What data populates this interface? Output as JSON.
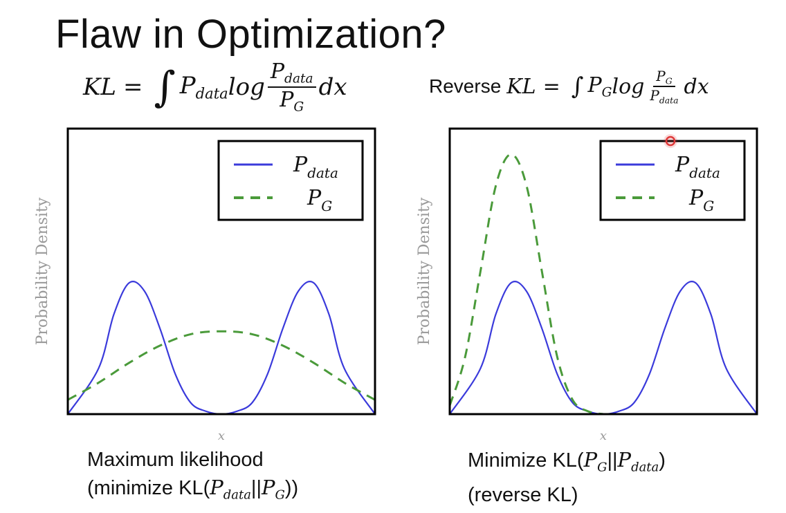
{
  "title": "Flaw in Optimization?",
  "formulas": {
    "left": {
      "lhs": "KL",
      "eq": "=",
      "integral": "∫",
      "p": "P",
      "sub": "data",
      "log": "log",
      "num_p": "P",
      "num_sub": "data",
      "den_p": "P",
      "den_sub": "G",
      "dx": "dx"
    },
    "right": {
      "prefix": "Reverse",
      "lhs": "KL",
      "eq": "=",
      "integral": "∫",
      "p": "P",
      "sub": "G",
      "log": "log",
      "num_p": "P",
      "num_sub": "G",
      "den_p": "P",
      "den_sub": "data",
      "dx": "dx"
    }
  },
  "captions": {
    "left": {
      "line1": "Maximum likelihood",
      "line2_a": "(minimize KL(",
      "p1": "P",
      "p1_sub": "data",
      "sep": "||",
      "p2": "P",
      "p2_sub": "G",
      "line2_b": "))"
    },
    "right": {
      "line1_a": "Minimize KL(",
      "p1": "P",
      "p1_sub": "G",
      "sep": "||",
      "p2": "P",
      "p2_sub": "data",
      "line1_b": ")",
      "line2": "(reverse KL)"
    }
  },
  "colors": {
    "p_data": "#3a3adb",
    "p_g": "#4a9a3a",
    "frame": "#000000",
    "axis_label": "#999999",
    "pointer": "#e03a3a"
  },
  "chart_data": [
    {
      "type": "line",
      "xlabel": "x",
      "ylabel": "Probability Density",
      "legend_placement": "top-right",
      "legend": [
        {
          "p": "P",
          "sub": "data",
          "style": "solid"
        },
        {
          "p": "P",
          "sub": "G",
          "style": "dashed"
        }
      ],
      "xlim": [
        0,
        1
      ],
      "ylim": [
        0,
        1
      ],
      "series": [
        {
          "style": "solid",
          "x": [
            0.0,
            0.1,
            0.15,
            0.2,
            0.25,
            0.3,
            0.35,
            0.4,
            0.45,
            0.5,
            0.55,
            0.6,
            0.65,
            0.7,
            0.75,
            0.8,
            0.85,
            0.9,
            1.0
          ],
          "y": [
            0.0,
            0.16,
            0.35,
            0.46,
            0.43,
            0.3,
            0.14,
            0.04,
            0.01,
            0.0,
            0.01,
            0.04,
            0.14,
            0.3,
            0.43,
            0.46,
            0.35,
            0.16,
            0.0
          ]
        },
        {
          "style": "dashed",
          "x": [
            0.0,
            0.1,
            0.2,
            0.3,
            0.4,
            0.5,
            0.6,
            0.7,
            0.8,
            0.9,
            1.0
          ],
          "y": [
            0.05,
            0.11,
            0.18,
            0.24,
            0.28,
            0.29,
            0.28,
            0.24,
            0.18,
            0.11,
            0.05
          ]
        }
      ]
    },
    {
      "type": "line",
      "xlabel": "x",
      "ylabel": "Probability Density",
      "legend_placement": "top-right",
      "legend": [
        {
          "p": "P",
          "sub": "data",
          "style": "solid"
        },
        {
          "p": "P",
          "sub": "G",
          "style": "dashed"
        }
      ],
      "xlim": [
        0,
        1
      ],
      "ylim": [
        0,
        1
      ],
      "series": [
        {
          "style": "solid",
          "x": [
            0.0,
            0.1,
            0.15,
            0.2,
            0.25,
            0.3,
            0.35,
            0.4,
            0.45,
            0.5,
            0.55,
            0.6,
            0.65,
            0.7,
            0.75,
            0.8,
            0.85,
            0.9,
            1.0
          ],
          "y": [
            0.0,
            0.16,
            0.35,
            0.46,
            0.43,
            0.3,
            0.14,
            0.04,
            0.01,
            0.0,
            0.01,
            0.04,
            0.14,
            0.3,
            0.43,
            0.46,
            0.35,
            0.16,
            0.0
          ]
        },
        {
          "style": "dashed",
          "x": [
            0.0,
            0.05,
            0.1,
            0.15,
            0.2,
            0.25,
            0.3,
            0.35,
            0.4,
            0.45,
            0.5
          ],
          "y": [
            0.03,
            0.2,
            0.5,
            0.8,
            0.91,
            0.8,
            0.5,
            0.2,
            0.05,
            0.01,
            0.0
          ]
        }
      ]
    }
  ]
}
